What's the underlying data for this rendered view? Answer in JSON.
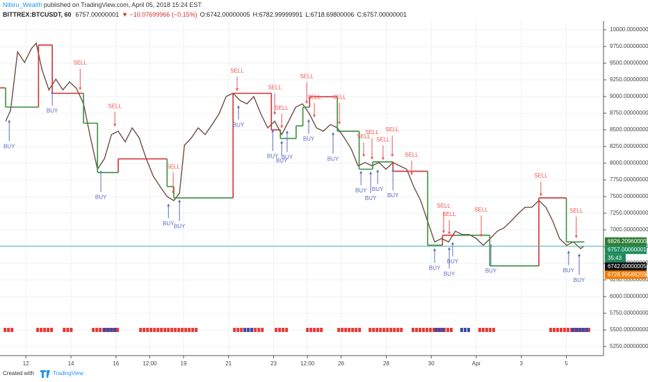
{
  "header": {
    "author": "Nibiru_Wealth",
    "published": " published on TradingView.com, April 05, 2018 15:24 EST",
    "symbol": "BITTREX:BTCUSDT, 60",
    "price": "6757.00000001",
    "change": "▼ −10.07699966 (−0.15%)",
    "open": "O:6742.00000005",
    "high": "H:6782.99999991",
    "low": "L:6718.69800006",
    "close": "C:6757.00000001"
  },
  "footer": {
    "created": "Created with",
    "brand": "TradingView"
  },
  "chart_data": {
    "type": "line",
    "x": [
      11.1,
      11.32,
      11.63,
      11.94,
      12.25,
      12.46,
      12.71,
      13.02,
      13.33,
      13.64,
      13.94,
      14.25,
      14.56,
      14.87,
      15.18,
      15.49,
      15.8,
      16.1,
      16.41,
      16.72,
      17.03,
      17.34,
      17.65,
      17.96,
      18.27,
      18.57,
      18.82,
      19.04,
      19.35,
      19.65,
      19.96,
      20.27,
      20.58,
      20.89,
      21.2,
      21.51,
      21.81,
      22.12,
      22.43,
      22.74,
      23.05,
      23.36,
      23.67,
      23.98,
      24.28,
      24.59,
      24.9,
      25.21,
      25.52,
      25.83,
      26.14,
      26.44,
      26.75,
      27.06,
      27.37,
      27.68,
      27.99,
      28.3,
      28.6,
      28.91,
      29.22,
      29.53,
      29.84,
      30.15,
      30.46,
      30.77,
      31.07,
      31.38,
      31.69,
      32,
      32.31,
      32.62,
      32.93,
      33.23,
      33.54,
      33.85,
      34.16,
      34.47,
      34.78,
      35.09,
      35.4,
      35.7,
      36.01,
      36.32,
      36.63,
      36.78
    ],
    "series": [
      {
        "color": "#6d4c41",
        "values": [
          8630,
          8790,
          9670,
          9510,
          9720,
          9800,
          9410,
          9100,
          9260,
          9100,
          9220,
          9120,
          8890,
          8380,
          7910,
          8070,
          8430,
          8480,
          8320,
          8530,
          8380,
          8070,
          7810,
          7650,
          7500,
          7440,
          7550,
          8270,
          8380,
          8530,
          8430,
          8580,
          8740,
          9000,
          9050,
          8940,
          8890,
          9000,
          8740,
          8530,
          8630,
          8430,
          8630,
          8840,
          8890,
          8740,
          8530,
          8480,
          8580,
          8530,
          8380,
          8220,
          7960,
          8010,
          7960,
          8010,
          7910,
          8010,
          7960,
          7910,
          7650,
          7440,
          7130,
          6820,
          6870,
          6820,
          6980,
          6930,
          6930,
          6870,
          6770,
          6870,
          6980,
          7030,
          7130,
          7240,
          7340,
          7340,
          7440,
          7340,
          7130,
          6870,
          6770,
          6820,
          6720,
          6757
        ]
      }
    ],
    "stops": [
      {
        "x0": 10.85,
        "x1": 11.1,
        "value": 9130,
        "color": "#d32f2f"
      },
      {
        "x0": 11.1,
        "x1": 12.56,
        "value": 8841,
        "color": "#388e3c"
      },
      {
        "x0": 12.56,
        "x1": 13.17,
        "value": 9772,
        "color": "#d32f2f"
      },
      {
        "x0": 13.17,
        "x1": 14.56,
        "value": 9048,
        "color": "#d32f2f"
      },
      {
        "x0": 14.56,
        "x1": 15.18,
        "value": 8600,
        "color": "#388e3c"
      },
      {
        "x0": 15.18,
        "x1": 16.1,
        "value": 7860,
        "color": "#388e3c"
      },
      {
        "x0": 16.1,
        "x1": 18.27,
        "value": 8065,
        "color": "#d32f2f"
      },
      {
        "x0": 18.27,
        "x1": 18.57,
        "value": 7650,
        "color": "#388e3c"
      },
      {
        "x0": 18.57,
        "x1": 21.2,
        "value": 7480,
        "color": "#388e3c"
      },
      {
        "x0": 21.2,
        "x1": 22.9,
        "value": 9048,
        "color": "#d32f2f"
      },
      {
        "x0": 22.9,
        "x1": 23.3,
        "value": 8500,
        "color": "#d32f2f"
      },
      {
        "x0": 23.3,
        "x1": 24.0,
        "value": 8370,
        "color": "#388e3c"
      },
      {
        "x0": 24.0,
        "x1": 24.3,
        "value": 8560,
        "color": "#388e3c"
      },
      {
        "x0": 24.3,
        "x1": 24.6,
        "value": 8840,
        "color": "#388e3c"
      },
      {
        "x0": 24.6,
        "x1": 25.83,
        "value": 8996,
        "color": "#d32f2f"
      },
      {
        "x0": 25.83,
        "x1": 26.8,
        "value": 8480,
        "color": "#388e3c"
      },
      {
        "x0": 26.8,
        "x1": 27.4,
        "value": 7910,
        "color": "#388e3c"
      },
      {
        "x0": 27.4,
        "x1": 28.3,
        "value": 8020,
        "color": "#388e3c"
      },
      {
        "x0": 28.3,
        "x1": 29.84,
        "value": 7880,
        "color": "#d32f2f"
      },
      {
        "x0": 29.84,
        "x1": 30.5,
        "value": 6770,
        "color": "#388e3c"
      },
      {
        "x0": 30.5,
        "x1": 31.1,
        "value": 6920,
        "color": "#d32f2f"
      },
      {
        "x0": 31.1,
        "x1": 32.6,
        "value": 6920,
        "color": "#388e3c"
      },
      {
        "x0": 32.6,
        "x1": 34.78,
        "value": 6460,
        "color": "#388e3c"
      },
      {
        "x0": 34.78,
        "x1": 36.0,
        "value": 7480,
        "color": "#d32f2f"
      },
      {
        "x0": 36.0,
        "x1": 36.8,
        "value": 6820,
        "color": "#388e3c"
      }
    ],
    "signals": [
      {
        "label": "BUY",
        "x": 11.26
      },
      {
        "label": "BUY",
        "x": 13.17
      },
      {
        "label": "SELL",
        "x": 14.41
      },
      {
        "label": "BUY",
        "x": 15.33
      },
      {
        "label": "SELL",
        "x": 15.95
      },
      {
        "label": "BUY",
        "x": 18.33
      },
      {
        "label": "SELL",
        "x": 18.54
      },
      {
        "label": "BUY",
        "x": 18.82
      },
      {
        "label": "SELL",
        "x": 21.38
      },
      {
        "label": "BUY",
        "x": 21.44
      },
      {
        "label": "BUY",
        "x": 22.96
      },
      {
        "label": "SELL",
        "x": 23.05
      },
      {
        "label": "SELL",
        "x": 23.36
      },
      {
        "label": "BUY",
        "x": 23.36
      },
      {
        "label": "BUY",
        "x": 23.6
      },
      {
        "label": "SELL",
        "x": 24.47
      },
      {
        "label": "BUY",
        "x": 24.56
      },
      {
        "label": "SELL",
        "x": 24.81
      },
      {
        "label": "BUY",
        "x": 25.64
      },
      {
        "label": "SELL",
        "x": 25.92
      },
      {
        "label": "BUY",
        "x": 26.88
      },
      {
        "label": "SELL",
        "x": 27.0
      },
      {
        "label": "BUY",
        "x": 27.31
      },
      {
        "label": "SELL",
        "x": 27.37
      },
      {
        "label": "BUY",
        "x": 27.62
      },
      {
        "label": "SELL",
        "x": 27.86
      },
      {
        "label": "SELL",
        "x": 28.27
      },
      {
        "label": "BUY",
        "x": 28.3
      },
      {
        "label": "SELL",
        "x": 29.13
      },
      {
        "label": "BUY",
        "x": 30.15
      },
      {
        "label": "SELL",
        "x": 30.55
      },
      {
        "label": "SELL",
        "x": 30.8
      },
      {
        "label": "BUY",
        "x": 30.8
      },
      {
        "label": "BUY",
        "x": 30.95
      },
      {
        "label": "SELL",
        "x": 32.22
      },
      {
        "label": "BUY",
        "x": 32.65
      },
      {
        "label": "SELL",
        "x": 34.87
      },
      {
        "label": "BUY",
        "x": 36.1
      },
      {
        "label": "SELL",
        "x": 36.44
      },
      {
        "label": "BUY",
        "x": 36.57
      }
    ],
    "signal_colors": {
      "SELL": "#ef5350",
      "BUY": "#5c6bc0"
    },
    "indicator": [
      {
        "x0": 11.01,
        "x1": 11.32,
        "color": "#e53935"
      },
      {
        "x0": 12.46,
        "x1": 13.17,
        "color": "#e53935"
      },
      {
        "x0": 13.64,
        "x1": 14.1,
        "color": "#e53935"
      },
      {
        "x0": 14.93,
        "x1": 16.1,
        "color": "#e53935"
      },
      {
        "x0": 15.43,
        "x1": 15.95,
        "color": "#3949ab"
      },
      {
        "x0": 17.03,
        "x1": 19.65,
        "color": "#e53935"
      },
      {
        "x0": 21.2,
        "x1": 22.52,
        "color": "#e53935"
      },
      {
        "x0": 21.66,
        "x1": 22.12,
        "color": "#3949ab"
      },
      {
        "x0": 23.05,
        "x1": 23.57,
        "color": "#e53935"
      },
      {
        "x0": 24.44,
        "x1": 25.21,
        "color": "#e53935"
      },
      {
        "x0": 25.83,
        "x1": 26.91,
        "color": "#e53935"
      },
      {
        "x0": 27.22,
        "x1": 28.7,
        "color": "#e53935"
      },
      {
        "x0": 29.13,
        "x1": 30.92,
        "color": "#e53935"
      },
      {
        "x0": 30.15,
        "x1": 30.46,
        "color": "#3949ab"
      },
      {
        "x0": 31.29,
        "x1": 31.6,
        "color": "#3949ab"
      },
      {
        "x0": 32.09,
        "x1": 32.77,
        "color": "#e53935"
      },
      {
        "x0": 35.24,
        "x1": 36.94,
        "color": "#e53935"
      },
      {
        "x0": 36.23,
        "x1": 36.85,
        "color": "#3949ab"
      }
    ],
    "indicator_level": 5500,
    "price_labels": [
      {
        "value": 6826.2096,
        "label": "6826.20960000",
        "color": "#2e7d32"
      },
      {
        "value": 6757.00000001,
        "label": "6757.00000001",
        "color": "#1b8a5a",
        "note": "35:43"
      },
      {
        "value": 6742.00000005,
        "label": "6742.00000005",
        "color": "#111111"
      },
      {
        "value": 6728.99588259,
        "label": "6728.99588259",
        "color": "#f57c00"
      }
    ],
    "current_line_color": "#4db6ac",
    "xlim": [
      10.85,
      37.65
    ],
    "xticks": [
      12,
      14,
      16,
      {
        "value": 17.5,
        "label": "12:00"
      },
      19,
      21,
      23,
      {
        "value": 24.5,
        "label": "12:00"
      },
      26,
      28,
      30,
      {
        "value": 32,
        "label": "Apr"
      },
      {
        "value": 34,
        "label": "3"
      },
      {
        "value": 36,
        "label": "5"
      }
    ],
    "ylim": [
      5115,
      10135
    ],
    "yticks": [
      {
        "value": 5250,
        "label": "5250.00000000"
      },
      {
        "value": 5500,
        "label": "5500.00000000"
      },
      {
        "value": 5750,
        "label": "5750.00000000"
      },
      {
        "value": 6000,
        "label": "6000.00000000"
      },
      {
        "value": 6250,
        "label": "6250.00000000"
      },
      {
        "value": 6500,
        "label": "6500.00000000"
      },
      {
        "value": 6750,
        "label": "6750.00000000"
      },
      {
        "value": 7000,
        "label": "7000.00000000"
      },
      {
        "value": 7250,
        "label": "7250.00000000"
      },
      {
        "value": 7500,
        "label": "7500.00000000"
      },
      {
        "value": 7750,
        "label": "7750.00000000"
      },
      {
        "value": 8000,
        "label": "8000.00000000"
      },
      {
        "value": 8250,
        "label": "8250.00000000"
      },
      {
        "value": 8500,
        "label": "8500.00000000"
      },
      {
        "value": 8750,
        "label": "8750.00000000"
      },
      {
        "value": 9000,
        "label": "9000.00000000"
      },
      {
        "value": 9250,
        "label": "9250.00000000"
      },
      {
        "value": 9500,
        "label": "9500.00000000"
      },
      {
        "value": 9750,
        "label": "9750.00000000"
      },
      {
        "value": 10000,
        "label": "10000.00000000"
      }
    ],
    "grid": true
  }
}
